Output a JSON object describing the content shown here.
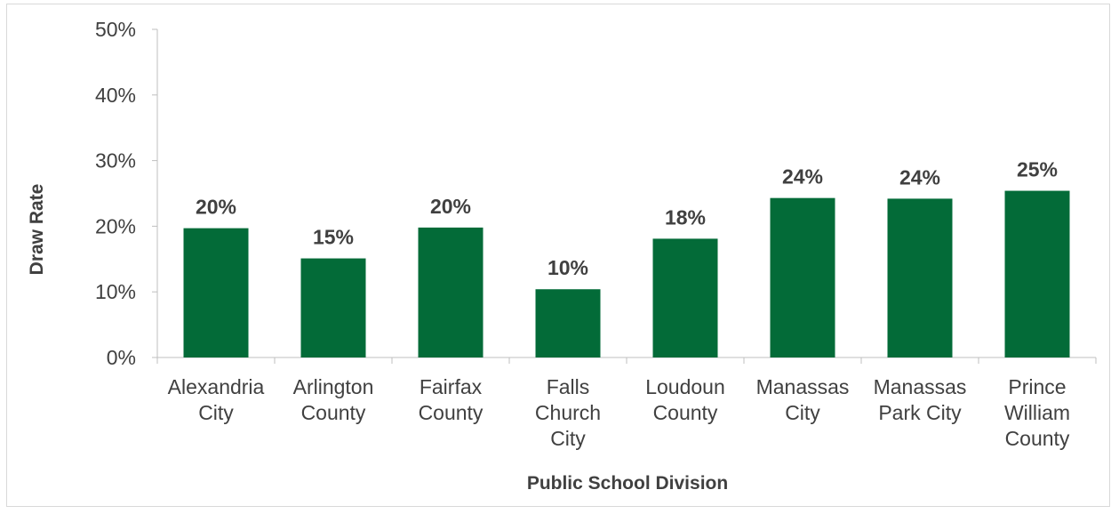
{
  "chart_data": {
    "type": "bar",
    "categories": [
      [
        "Alexandria",
        "City"
      ],
      [
        "Arlington",
        "County"
      ],
      [
        "Fairfax",
        "County"
      ],
      [
        "Falls",
        "Church",
        "City"
      ],
      [
        "Loudoun",
        "County"
      ],
      [
        "Manassas",
        "City"
      ],
      [
        "Manassas",
        "Park City"
      ],
      [
        "Prince",
        "William",
        "County"
      ]
    ],
    "values": [
      19.7,
      15.1,
      19.8,
      10.4,
      18.1,
      24.3,
      24.2,
      25.4
    ],
    "data_labels": [
      "20%",
      "15%",
      "20%",
      "10%",
      "18%",
      "24%",
      "24%",
      "25%"
    ],
    "title": "",
    "xlabel": "Public School Division",
    "ylabel": "Draw Rate",
    "ylim": [
      0,
      50
    ],
    "yticks": [
      0,
      10,
      20,
      30,
      40,
      50
    ],
    "ytick_labels": [
      "0%",
      "10%",
      "20%",
      "30%",
      "40%",
      "50%"
    ],
    "bar_color": "#036b38",
    "grid": false,
    "legend": "none"
  }
}
